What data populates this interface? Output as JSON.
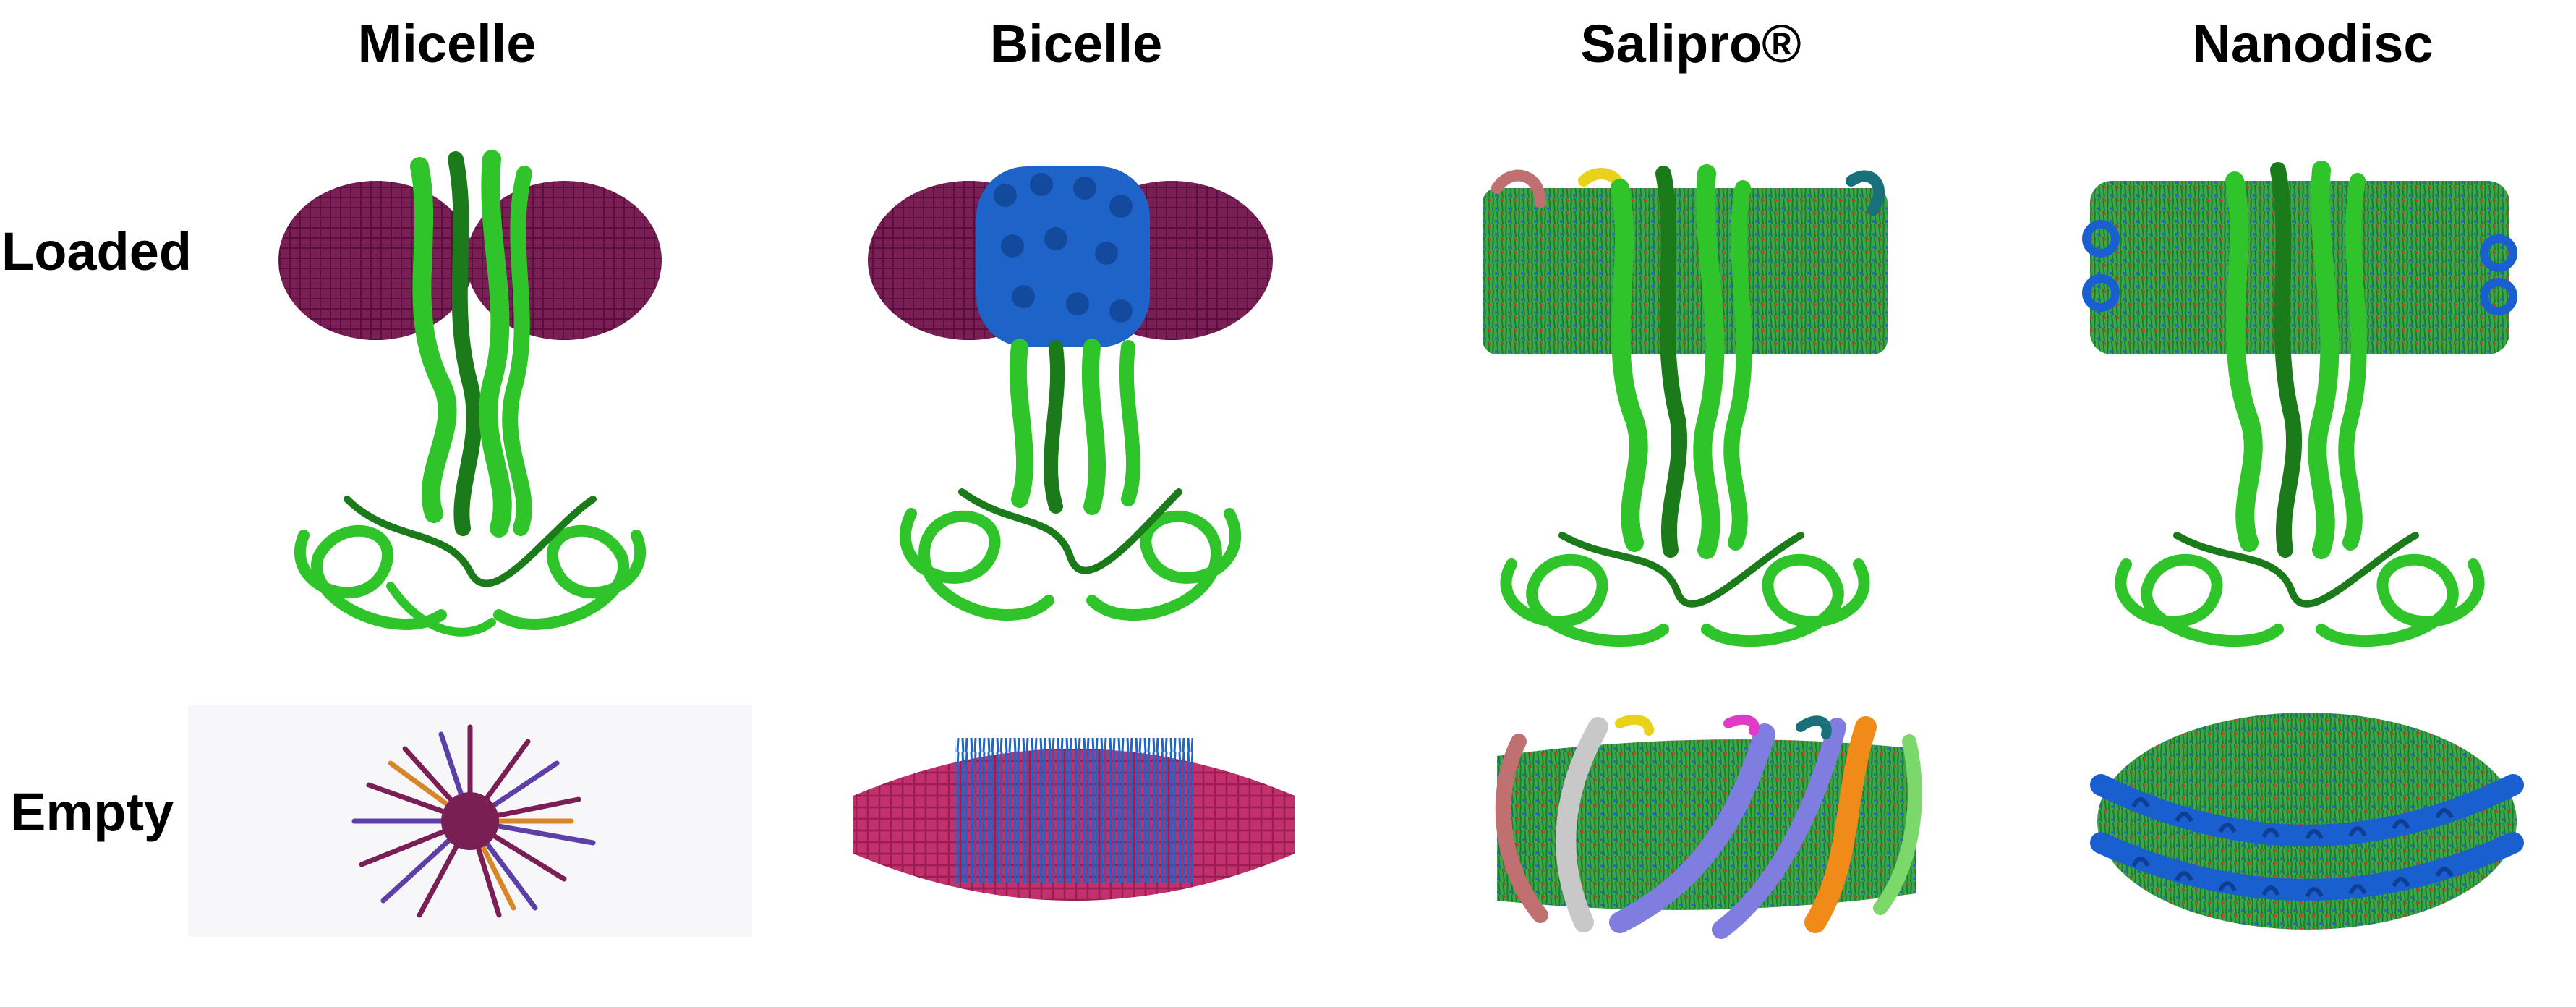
{
  "columns": [
    {
      "title": "Micelle"
    },
    {
      "title": "Bicelle"
    },
    {
      "title": "Salipro®"
    },
    {
      "title": "Nanodisc"
    }
  ],
  "rows": [
    {
      "label": "Loaded"
    },
    {
      "label": "Empty"
    }
  ],
  "colors": {
    "protein_green": "#2fc42a",
    "protein_dark": "#1b7a19",
    "micelle_purple": "#7a1f55",
    "bicelle_pink": "#c2306e",
    "bicelle_blue": "#1e63c8",
    "lipid_green": "#3aa84a",
    "scaffold_blue": "#1a5fcf",
    "saposin_lavender": "#7f7de0",
    "saposin_orange": "#f08a18",
    "saposin_gray": "#c8c8c8"
  }
}
